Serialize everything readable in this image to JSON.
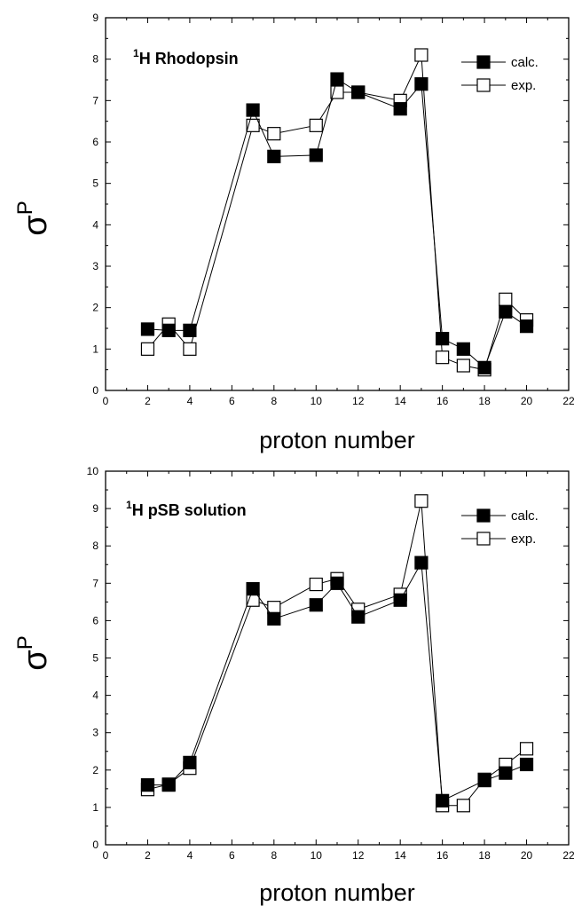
{
  "chart_data": [
    {
      "type": "line",
      "title": "¹H Rhodopsin",
      "xlabel": "proton number",
      "ylabel": "σP",
      "xlim": [
        0,
        22
      ],
      "ylim": [
        0,
        9
      ],
      "xticks": [
        0,
        2,
        4,
        6,
        8,
        10,
        12,
        14,
        16,
        18,
        20,
        22
      ],
      "yticks": [
        0,
        1,
        2,
        3,
        4,
        5,
        6,
        7,
        8,
        9
      ],
      "grid": false,
      "legend_position": "top-right",
      "series": [
        {
          "name": "calc.",
          "marker": "filled-square",
          "color": "#000000",
          "x": [
            2,
            3,
            4,
            7,
            8,
            10,
            11,
            12,
            14,
            15,
            16,
            17,
            18,
            19,
            20
          ],
          "y": [
            1.48,
            1.45,
            1.45,
            6.77,
            5.65,
            5.68,
            7.52,
            7.2,
            6.8,
            7.4,
            1.25,
            1.0,
            0.55,
            1.9,
            1.55
          ]
        },
        {
          "name": "exp.",
          "marker": "open-square",
          "color": "#000000",
          "x": [
            2,
            3,
            4,
            7,
            8,
            10,
            11,
            12,
            14,
            15,
            16,
            17,
            18,
            19,
            20
          ],
          "y": [
            1.0,
            1.6,
            1.0,
            6.4,
            6.2,
            6.4,
            7.2,
            7.2,
            7.0,
            8.1,
            0.8,
            0.6,
            0.5,
            2.2,
            1.7
          ]
        }
      ]
    },
    {
      "type": "line",
      "title": "¹H pSB solution",
      "xlabel": "proton number",
      "ylabel": "σP",
      "xlim": [
        0,
        22
      ],
      "ylim": [
        0,
        10
      ],
      "xticks": [
        0,
        2,
        4,
        6,
        8,
        10,
        12,
        14,
        16,
        18,
        20,
        22
      ],
      "yticks": [
        0,
        1,
        2,
        3,
        4,
        5,
        6,
        7,
        8,
        9,
        10
      ],
      "grid": false,
      "legend_position": "top-right",
      "series": [
        {
          "name": "calc.",
          "marker": "filled-square",
          "color": "#000000",
          "x": [
            2,
            3,
            4,
            7,
            8,
            10,
            11,
            12,
            14,
            15,
            16,
            18,
            19,
            20
          ],
          "y": [
            1.6,
            1.6,
            2.2,
            6.85,
            6.05,
            6.42,
            7.0,
            6.1,
            6.55,
            7.55,
            1.18,
            1.72,
            1.92,
            2.15
          ]
        },
        {
          "name": "exp.",
          "marker": "open-square",
          "color": "#000000",
          "x": [
            2,
            3,
            4,
            7,
            8,
            10,
            11,
            12,
            14,
            15,
            16,
            17,
            18,
            19,
            20
          ],
          "y": [
            1.48,
            1.62,
            2.05,
            6.55,
            6.35,
            6.97,
            7.12,
            6.3,
            6.7,
            9.2,
            1.05,
            1.05,
            1.75,
            2.15,
            2.57
          ]
        }
      ]
    }
  ]
}
